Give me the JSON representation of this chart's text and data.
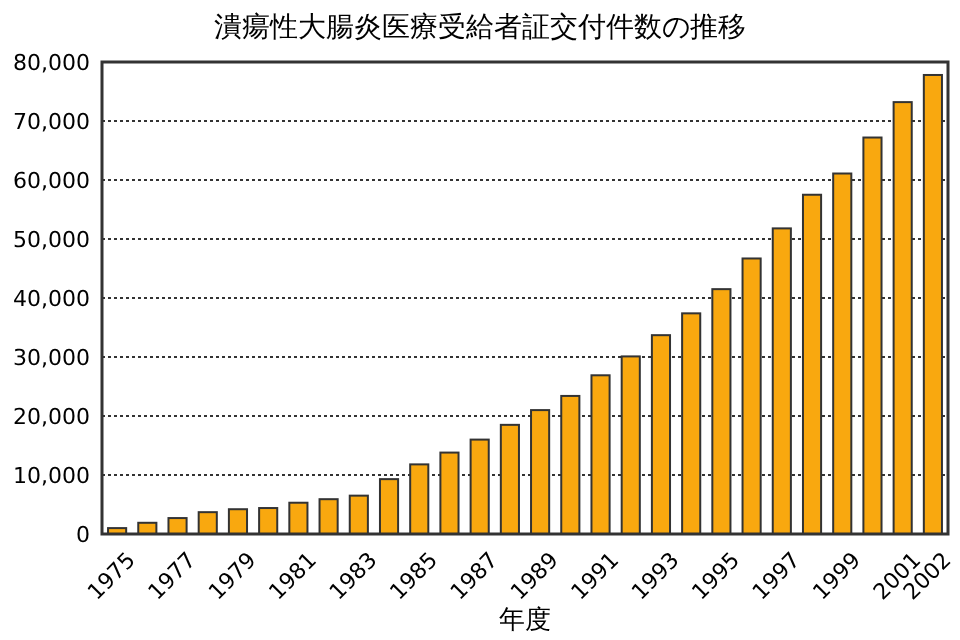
{
  "chart_data": {
    "type": "bar",
    "title": "潰瘍性大腸炎医療受給者証交付件数の推移",
    "xlabel": "年度",
    "categories": [
      "1975",
      null,
      "1977",
      null,
      "1979",
      null,
      "1981",
      null,
      "1983",
      null,
      "1985",
      null,
      "1987",
      null,
      "1989",
      null,
      "1991",
      null,
      "1993",
      null,
      "1995",
      null,
      "1997",
      null,
      "1999",
      null,
      "2001",
      "2002"
    ],
    "values": [
      1000,
      1900,
      2700,
      3700,
      4200,
      4400,
      5300,
      5900,
      6500,
      9300,
      11800,
      13800,
      16000,
      18500,
      21000,
      23400,
      26900,
      30100,
      33700,
      37400,
      41500,
      46700,
      51800,
      57500,
      61100,
      67200,
      73200,
      77800
    ],
    "color": "#f9a80f",
    "ylim": [
      0,
      80000
    ],
    "yticks": [
      {
        "value": 0,
        "label": "0"
      },
      {
        "value": 10000,
        "label": "10,000"
      },
      {
        "value": 20000,
        "label": "20,000"
      },
      {
        "value": 30000,
        "label": "30,000"
      },
      {
        "value": 40000,
        "label": "40,000"
      },
      {
        "value": 50000,
        "label": "50,000"
      },
      {
        "value": 60000,
        "label": "60,000"
      },
      {
        "value": 70000,
        "label": "70,000"
      },
      {
        "value": 80000,
        "label": "80,000"
      }
    ],
    "grid": "y"
  }
}
